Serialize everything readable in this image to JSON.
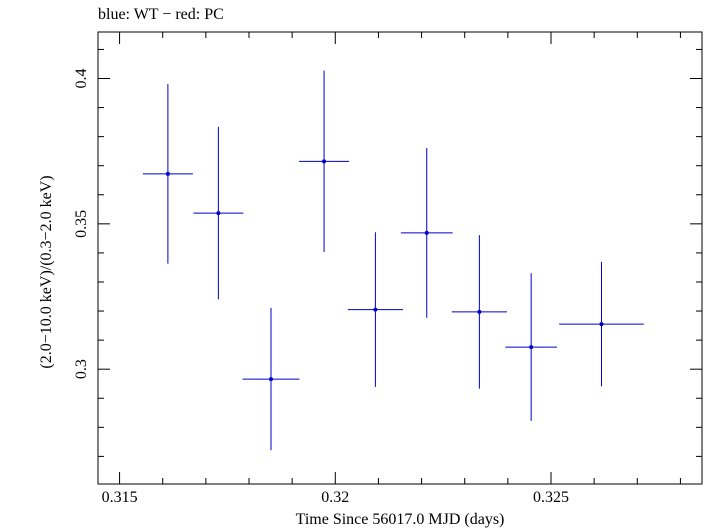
{
  "title": "blue: WT − red: PC",
  "chart_data": {
    "type": "scatter",
    "title": "blue: WT − red: PC",
    "xlabel": "Time Since 56017.0 MJD (days)",
    "ylabel": "(2.0−10.0 keV)/(0.3−2.0 keV)",
    "xlim": [
      0.3145,
      0.3285
    ],
    "ylim": [
      0.2605,
      0.416
    ],
    "xticks": [
      0.315,
      0.32,
      0.325
    ],
    "xtick_labels": [
      "0.315",
      "0.32",
      "0.325"
    ],
    "yticks": [
      0.3,
      0.35,
      0.4
    ],
    "ytick_labels": [
      "0.3",
      "0.35",
      "0.4"
    ],
    "grid": false,
    "series": [
      {
        "color": "#0000cc",
        "points": [
          {
            "x": 0.31612,
            "y": 0.3672,
            "xerr": 0.00058,
            "yerr": 0.0309
          },
          {
            "x": 0.31729,
            "y": 0.3537,
            "xerr": 0.00058,
            "yerr": 0.0297
          },
          {
            "x": 0.31851,
            "y": 0.2966,
            "xerr": 0.00066,
            "yerr": 0.0245
          },
          {
            "x": 0.31974,
            "y": 0.3715,
            "xerr": 0.00058,
            "yerr": 0.0312
          },
          {
            "x": 0.32093,
            "y": 0.3205,
            "xerr": 0.00064,
            "yerr": 0.0266
          },
          {
            "x": 0.32212,
            "y": 0.3469,
            "xerr": 0.0006,
            "yerr": 0.0292
          },
          {
            "x": 0.32334,
            "y": 0.3197,
            "xerr": 0.00064,
            "yerr": 0.0264
          },
          {
            "x": 0.32454,
            "y": 0.3076,
            "xerr": 0.0006,
            "yerr": 0.0254
          },
          {
            "x": 0.32617,
            "y": 0.3155,
            "xerr": 0.00098,
            "yerr": 0.0214
          }
        ]
      }
    ]
  }
}
